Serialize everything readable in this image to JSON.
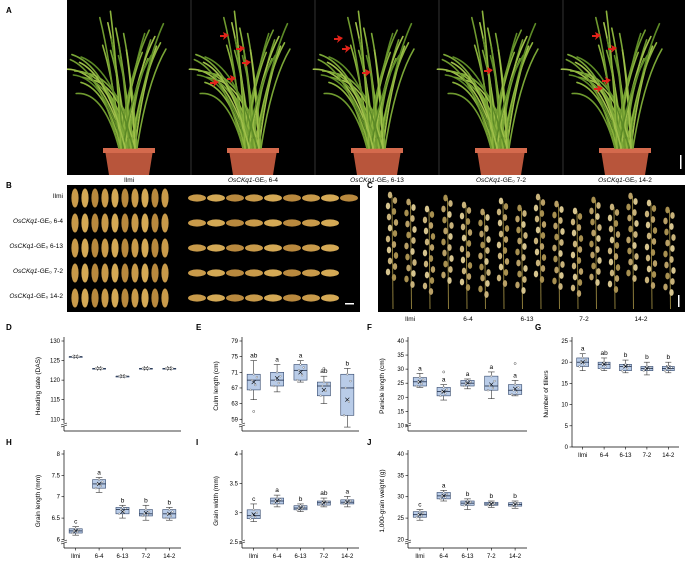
{
  "figure": {
    "panels": [
      "A",
      "B",
      "C",
      "D",
      "E",
      "F",
      "G",
      "H",
      "I",
      "J"
    ],
    "panel_a": {
      "labels": [
        {
          "prefix": "Ilmi",
          "italic": "",
          "suffix": ""
        },
        {
          "prefix": "",
          "italic": "OsCKq1",
          "suffix": "-GE₀ 6-4"
        },
        {
          "prefix": "",
          "italic": "OsCKq1",
          "suffix": "-GE₀ 6-13"
        },
        {
          "prefix": "",
          "italic": "OsCKq1",
          "suffix": "-GE₀ 7-2"
        },
        {
          "prefix": "",
          "italic": "OsCKq1",
          "suffix": "-GE₀ 14-2"
        }
      ]
    },
    "panel_b": {
      "labels": [
        {
          "prefix": "Ilmi",
          "italic": "",
          "suffix": ""
        },
        {
          "prefix": "",
          "italic": "OsCKq1",
          "suffix": "-GE₀ 6-4"
        },
        {
          "prefix": "",
          "italic": "OsCKq1",
          "suffix": "-GE₀ 6-13"
        },
        {
          "prefix": "",
          "italic": "OsCKq1",
          "suffix": "-GE₀ 7-2"
        },
        {
          "prefix": "",
          "italic": "OsCKq1",
          "suffix": "-GE₀ 14-2"
        }
      ]
    },
    "panel_c": {
      "labels": [
        "Ilmi",
        "6-4",
        "6-13",
        "7-2",
        "14-2"
      ]
    }
  },
  "chart_data": [
    {
      "panel": "D",
      "type": "box",
      "ylabel": "Heading date (DAS)",
      "categories": [
        "Ilmi",
        "6-4",
        "6-13",
        "7-2",
        "14-2"
      ],
      "yticks": [
        110,
        115,
        120,
        125,
        130
      ],
      "ylim": [
        107,
        130
      ],
      "axis_break": true,
      "boxes": [
        {
          "min": 126,
          "q1": 126,
          "median": 126,
          "q3": 126,
          "max": 126,
          "mean": 126
        },
        {
          "min": 123,
          "q1": 123,
          "median": 123,
          "q3": 123,
          "max": 123,
          "mean": 123
        },
        {
          "min": 121,
          "q1": 121,
          "median": 121,
          "q3": 121,
          "max": 121,
          "mean": 121
        },
        {
          "min": 123,
          "q1": 123,
          "median": 123,
          "q3": 123,
          "max": 123,
          "mean": 123
        },
        {
          "min": 123,
          "q1": 123,
          "median": 123,
          "q3": 123,
          "max": 123,
          "mean": 123
        }
      ],
      "letters": [
        "",
        "",
        "",
        "",
        ""
      ]
    },
    {
      "panel": "E",
      "type": "box",
      "ylabel": "Culm length (cm)",
      "categories": [
        "Ilmi",
        "6-4",
        "6-13",
        "7-2",
        "14-2"
      ],
      "yticks": [
        59,
        63,
        67,
        71,
        75,
        79
      ],
      "ylim": [
        56,
        79
      ],
      "axis_break": true,
      "boxes": [
        {
          "min": 64,
          "q1": 66.5,
          "median": 69,
          "q3": 70.5,
          "max": 74,
          "mean": 68.5,
          "outliers": [
            61
          ]
        },
        {
          "min": 66,
          "q1": 67.5,
          "median": 69,
          "q3": 71,
          "max": 73,
          "mean": 69.5
        },
        {
          "min": 68.5,
          "q1": 69,
          "median": 71.5,
          "q3": 73,
          "max": 74,
          "mean": 71
        },
        {
          "min": 63,
          "q1": 65,
          "median": 67.5,
          "q3": 68.5,
          "max": 70,
          "mean": 66.5,
          "outliers": [
            72
          ]
        },
        {
          "min": 57,
          "q1": 60,
          "median": 67,
          "q3": 70.5,
          "max": 72,
          "mean": 64
        }
      ],
      "letters": [
        "ab",
        "a",
        "a",
        "ab",
        "b"
      ]
    },
    {
      "panel": "F",
      "type": "box",
      "ylabel": "Panicle length (cm)",
      "categories": [
        "Ilmi",
        "6-4",
        "6-13",
        "7-2",
        "14-2"
      ],
      "yticks": [
        10,
        15,
        20,
        25,
        30,
        35,
        40
      ],
      "ylim": [
        8,
        40
      ],
      "axis_break": true,
      "boxes": [
        {
          "min": 23.5,
          "q1": 24,
          "median": 25.5,
          "q3": 27,
          "max": 28.5,
          "mean": 25.5
        },
        {
          "min": 19,
          "q1": 20.5,
          "median": 22,
          "q3": 23.5,
          "max": 24.5,
          "mean": 22,
          "outliers": [
            29
          ]
        },
        {
          "min": 23,
          "q1": 24,
          "median": 25,
          "q3": 26,
          "max": 26.5,
          "mean": 25
        },
        {
          "min": 19.5,
          "q1": 22.5,
          "median": 24,
          "q3": 27.5,
          "max": 29,
          "mean": 24.5
        },
        {
          "min": 20.5,
          "q1": 21,
          "median": 22.5,
          "q3": 24.5,
          "max": 26,
          "mean": 23,
          "outliers": [
            32
          ]
        }
      ],
      "letters": [
        "a",
        "a",
        "a",
        "a",
        "a"
      ]
    },
    {
      "panel": "G",
      "type": "box",
      "ylabel": "Number of tillers",
      "categories": [
        "Ilmi",
        "6-4",
        "6-13",
        "7-2",
        "14-2"
      ],
      "yticks": [
        0,
        5,
        10,
        15,
        20,
        25
      ],
      "ylim": [
        0,
        25
      ],
      "axis_break": false,
      "boxes": [
        {
          "min": 18,
          "q1": 19,
          "median": 20,
          "q3": 21,
          "max": 22,
          "mean": 20
        },
        {
          "min": 18,
          "q1": 18.5,
          "median": 19.5,
          "q3": 20,
          "max": 21,
          "mean": 19.5
        },
        {
          "min": 17.5,
          "q1": 18,
          "median": 19,
          "q3": 19.5,
          "max": 20.5,
          "mean": 19
        },
        {
          "min": 17,
          "q1": 18,
          "median": 18.5,
          "q3": 19,
          "max": 20,
          "mean": 18.5
        },
        {
          "min": 17.5,
          "q1": 18,
          "median": 18.5,
          "q3": 19,
          "max": 20,
          "mean": 18.8
        }
      ],
      "letters": [
        "a",
        "ab",
        "b",
        "b",
        "b"
      ]
    },
    {
      "panel": "H",
      "type": "box",
      "ylabel": "Grain length (mm)",
      "categories": [
        "Ilmi",
        "6-4",
        "6-13",
        "7-2",
        "14-2"
      ],
      "yticks": [
        6.0,
        6.5,
        7.0,
        7.5,
        8.0
      ],
      "ylim": [
        5.8,
        8.0
      ],
      "axis_break": true,
      "boxes": [
        {
          "min": 6.1,
          "q1": 6.15,
          "median": 6.2,
          "q3": 6.25,
          "max": 6.3,
          "mean": 6.2
        },
        {
          "min": 7.1,
          "q1": 7.2,
          "median": 7.3,
          "q3": 7.4,
          "max": 7.45,
          "mean": 7.3
        },
        {
          "min": 6.5,
          "q1": 6.6,
          "median": 6.7,
          "q3": 6.75,
          "max": 6.8,
          "mean": 6.65
        },
        {
          "min": 6.45,
          "q1": 6.55,
          "median": 6.6,
          "q3": 6.7,
          "max": 6.8,
          "mean": 6.62
        },
        {
          "min": 6.45,
          "q1": 6.5,
          "median": 6.6,
          "q3": 6.7,
          "max": 6.75,
          "mean": 6.6
        }
      ],
      "letters": [
        "c",
        "a",
        "b",
        "b",
        "b"
      ]
    },
    {
      "panel": "I",
      "type": "box",
      "ylabel": "Grain width (mm)",
      "categories": [
        "Ilmi",
        "6-4",
        "6-13",
        "7-2",
        "14-2"
      ],
      "yticks": [
        2.5,
        3.0,
        3.5,
        4.0
      ],
      "ylim": [
        2.4,
        4.0
      ],
      "axis_break": true,
      "boxes": [
        {
          "min": 2.85,
          "q1": 2.9,
          "median": 2.95,
          "q3": 3.05,
          "max": 3.15,
          "mean": 2.97
        },
        {
          "min": 3.1,
          "q1": 3.15,
          "median": 3.2,
          "q3": 3.25,
          "max": 3.3,
          "mean": 3.2
        },
        {
          "min": 3.02,
          "q1": 3.05,
          "median": 3.08,
          "q3": 3.12,
          "max": 3.15,
          "mean": 3.08
        },
        {
          "min": 3.1,
          "q1": 3.13,
          "median": 3.17,
          "q3": 3.2,
          "max": 3.25,
          "mean": 3.17
        },
        {
          "min": 3.1,
          "q1": 3.15,
          "median": 3.18,
          "q3": 3.22,
          "max": 3.28,
          "mean": 3.18
        }
      ],
      "letters": [
        "c",
        "a",
        "b",
        "ab",
        "a"
      ]
    },
    {
      "panel": "J",
      "type": "box",
      "ylabel": "1,000-grain weight (g)",
      "categories": [
        "Ilmi",
        "6-4",
        "6-13",
        "7-2",
        "14-2"
      ],
      "yticks": [
        20,
        25,
        30,
        35,
        40
      ],
      "ylim": [
        18,
        40
      ],
      "axis_break": true,
      "boxes": [
        {
          "min": 24.5,
          "q1": 25.2,
          "median": 25.8,
          "q3": 26.5,
          "max": 27,
          "mean": 25.8
        },
        {
          "min": 29,
          "q1": 29.5,
          "median": 30.2,
          "q3": 31,
          "max": 31.5,
          "mean": 30.2
        },
        {
          "min": 27,
          "q1": 28,
          "median": 28.5,
          "q3": 29,
          "max": 29.5,
          "mean": 28.5
        },
        {
          "min": 27.5,
          "q1": 28,
          "median": 28.3,
          "q3": 28.7,
          "max": 29,
          "mean": 28.3
        },
        {
          "min": 27.3,
          "q1": 27.8,
          "median": 28.2,
          "q3": 28.6,
          "max": 29,
          "mean": 28.2
        }
      ],
      "letters": [
        "c",
        "a",
        "b",
        "b",
        "b"
      ]
    }
  ]
}
